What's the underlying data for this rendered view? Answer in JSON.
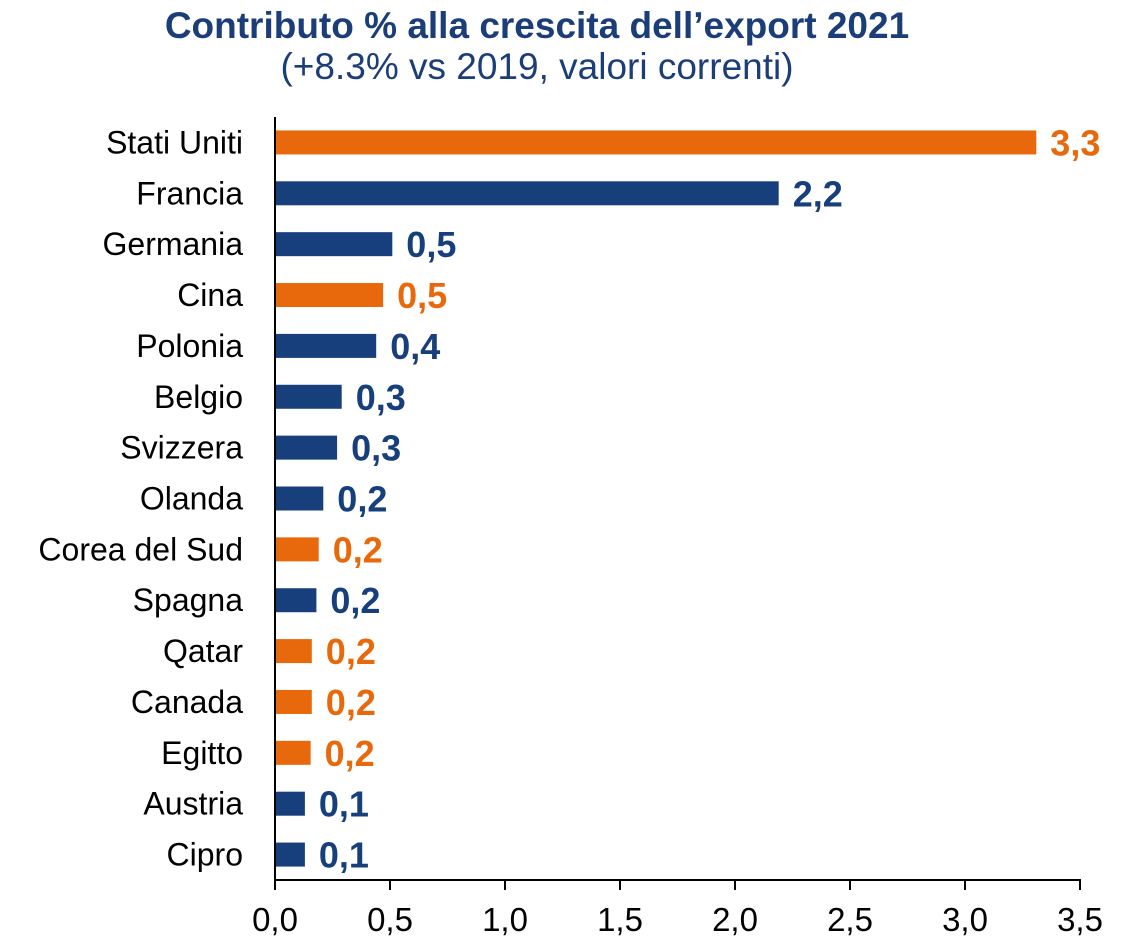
{
  "chart_data": {
    "type": "bar",
    "orientation": "horizontal",
    "title": "Contributo % alla crescita dell’export 2021",
    "subtitle": "(+8.3% vs 2019, valori correnti)",
    "categories": [
      "Stati Uniti",
      "Francia",
      "Germania",
      "Cina",
      "Polonia",
      "Belgio",
      "Svizzera",
      "Olanda",
      "Corea del Sud",
      "Spagna",
      "Qatar",
      "Canada",
      "Egitto",
      "Austria",
      "Cipro"
    ],
    "values": [
      3.31,
      2.19,
      0.51,
      0.47,
      0.44,
      0.29,
      0.27,
      0.21,
      0.19,
      0.18,
      0.16,
      0.16,
      0.155,
      0.13,
      0.13
    ],
    "value_labels": [
      "3,3",
      "2,2",
      "0,5",
      "0,5",
      "0,4",
      "0,3",
      "0,3",
      "0,2",
      "0,2",
      "0,2",
      "0,2",
      "0,2",
      "0,2",
      "0,1",
      "0,1"
    ],
    "bar_colors": [
      "#E8690B",
      "#173F7C",
      "#173F7C",
      "#E8690B",
      "#173F7C",
      "#173F7C",
      "#173F7C",
      "#173F7C",
      "#E8690B",
      "#173F7C",
      "#E8690B",
      "#E8690B",
      "#E8690B",
      "#173F7C",
      "#173F7C"
    ],
    "xlim": [
      0,
      3.5
    ],
    "x_ticks": [
      0,
      0.5,
      1,
      1.5,
      2,
      2.5,
      3,
      3.5
    ],
    "x_tick_labels": [
      "0,0",
      "0,5",
      "1,0",
      "1,5",
      "2,0",
      "2,5",
      "3,0",
      "3,5"
    ],
    "grid": false
  },
  "colors": {
    "title": "#1B3D78",
    "navy": "#173F7C",
    "orange": "#E8690B",
    "text": "#000000",
    "axis": "#000000"
  }
}
